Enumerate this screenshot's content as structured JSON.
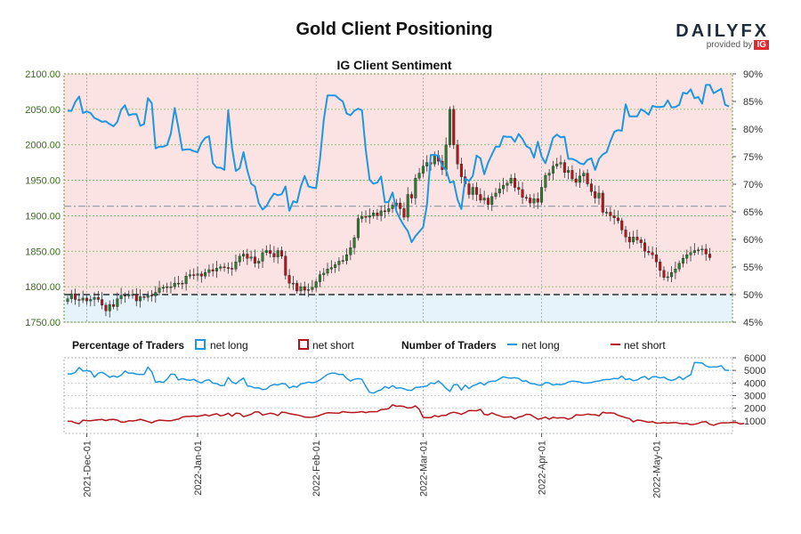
{
  "page": {
    "title": "Gold Client Positioning",
    "logo": {
      "brand_main": "DAILY",
      "brand_accent": "FX",
      "provided_by": "provided by",
      "ig": "IG"
    }
  },
  "colors": {
    "net_long": "#1e96e3",
    "net_short": "#b8141c",
    "candle_up": "#2e7d32",
    "candle_down": "#b8141c",
    "long_zone": "#e6f3fb",
    "short_zone": "#fbe3e3",
    "price_axis": "#3a6b1a",
    "grid": "#78b85a"
  },
  "chart_data": [
    {
      "type": "line",
      "title": "IG Client Sentiment",
      "left_axis": {
        "label": "",
        "ylim": [
          1750,
          2100
        ],
        "ticks": [
          "1750.00",
          "1800.00",
          "1850.00",
          "1900.00",
          "1950.00",
          "2000.00",
          "2050.00",
          "2100.00"
        ]
      },
      "right_axis": {
        "label": "",
        "ylim": [
          45,
          90
        ],
        "ticks": [
          "45%",
          "50%",
          "55%",
          "60%",
          "65%",
          "70%",
          "75%",
          "80%",
          "85%",
          "90%"
        ]
      },
      "reference_levels": {
        "sentiment_50_pct": 50,
        "price_dashed": 1913.5
      },
      "x_ticks": [
        "2021-Dec-01",
        "2022-Jan-01",
        "2022-Feb-01",
        "2022-Mar-01",
        "2022-Apr-01",
        "2022-May-01"
      ],
      "candles_close": [
        1783,
        1790,
        1782,
        1781,
        1784,
        1780,
        1782,
        1785,
        1782,
        1774,
        1766,
        1775,
        1772,
        1783,
        1788,
        1787,
        1789,
        1789,
        1780,
        1786,
        1785,
        1788,
        1787,
        1792,
        1798,
        1799,
        1800,
        1800,
        1805,
        1805,
        1804,
        1815,
        1817,
        1816,
        1818,
        1815,
        1820,
        1824,
        1822,
        1826,
        1828,
        1827,
        1826,
        1825,
        1835,
        1843,
        1846,
        1840,
        1842,
        1833,
        1836,
        1848,
        1851,
        1847,
        1842,
        1851,
        1843,
        1816,
        1805,
        1805,
        1794,
        1800,
        1795,
        1796,
        1799,
        1807,
        1817,
        1819,
        1825,
        1827,
        1831,
        1836,
        1837,
        1845,
        1855,
        1869,
        1896,
        1899,
        1898,
        1900,
        1904,
        1900,
        1907,
        1906,
        1910,
        1915,
        1918,
        1910,
        1898,
        1930,
        1925,
        1953,
        1960,
        1970,
        1975,
        1973,
        1985,
        1977,
        1965,
        2000,
        2050,
        2000,
        1973,
        1955,
        1945,
        1930,
        1940,
        1930,
        1922,
        1925,
        1916,
        1927,
        1932,
        1938,
        1943,
        1946,
        1953,
        1940,
        1937,
        1926,
        1925,
        1918,
        1924,
        1919,
        1940,
        1957,
        1960,
        1970,
        1973,
        1975,
        1961,
        1964,
        1952,
        1947,
        1956,
        1960,
        1945,
        1934,
        1925,
        1932,
        1905,
        1905,
        1900,
        1897,
        1893,
        1880,
        1870,
        1863,
        1870,
        1866,
        1862,
        1850,
        1848,
        1845,
        1835,
        1823,
        1813,
        1814,
        1820,
        1825,
        1833,
        1840,
        1845,
        1848,
        1851,
        1852,
        1853,
        1846,
        1841
      ],
      "series": [
        {
          "name": "net long",
          "axis": "right",
          "values": [
            83.3,
            83.3,
            84.9,
            85.9,
            82.9,
            83.2,
            82.9,
            82.0,
            81.7,
            81.3,
            81.4,
            80.9,
            80.5,
            81.3,
            83.5,
            84.3,
            82.5,
            82.7,
            82.7,
            80.6,
            80.9,
            85.6,
            84.7,
            76.5,
            76.8,
            76.8,
            77.1,
            79.2,
            83.8,
            80.2,
            76.2,
            76.3,
            76.3,
            76.0,
            75.8,
            77.5,
            78.4,
            78.7,
            73.8,
            73.0,
            73.0,
            72.6,
            83.4,
            76.6,
            72.4,
            72.9,
            75.8,
            72.5,
            70.1,
            69.6,
            66.6,
            65.4,
            66.0,
            67.3,
            68.3,
            68.0,
            68.2,
            69.6,
            65.2,
            66.9,
            66.7,
            69.6,
            71.5,
            69.6,
            69.4,
            69.3,
            74.5,
            81.7,
            86.1,
            86.1,
            86.1,
            85.5,
            85.0,
            82.8,
            82.5,
            83.3,
            83.7,
            83.4,
            76.2,
            70.8,
            70.1,
            70.3,
            71.4,
            66.7,
            66.8,
            68.5,
            65.1,
            63.7,
            62.5,
            61.5,
            59.5,
            60.6,
            61.4,
            62.2,
            66.2,
            75.3,
            75.3,
            75.2,
            73.3,
            72.6,
            70.3,
            70.5,
            67.2,
            65.5,
            71.0,
            70.6,
            71.5,
            75.2,
            74.7,
            71.8,
            73.9,
            75.4,
            76.8,
            76.8,
            78.7,
            78.6,
            78.6,
            77.7,
            79.1,
            78.2,
            76.9,
            76.5,
            74.8,
            77.7,
            75.0,
            73.8,
            76.0,
            78.4,
            79.0,
            78.5,
            78.6,
            74.6,
            74.6,
            74.3,
            73.8,
            73.6,
            74.4,
            74.7,
            72.6,
            74.6,
            75.4,
            75.8,
            77.8,
            79.5,
            79.8,
            79.7,
            84.5,
            82.3,
            82.3,
            82.3,
            83.6,
            83.2,
            82.6,
            84.2,
            84.0,
            84.0,
            84.1,
            85.2,
            83.9,
            84.0,
            84.4,
            86.6,
            86.4,
            87.2,
            85.6,
            85.8,
            84.6,
            88.0,
            88.0,
            86.5,
            86.9,
            87.3,
            84.4,
            84.1
          ]
        },
        {
          "name": "net short",
          "axis": "right",
          "values": [
            16.7,
            16.7,
            15.1,
            14.1,
            17.1,
            16.8,
            17.1,
            18.0,
            18.3,
            18.7,
            18.6,
            19.1,
            19.5,
            18.7,
            16.5,
            15.7,
            17.5,
            17.3,
            17.3,
            19.4,
            19.1,
            14.4,
            15.3,
            23.5,
            23.2,
            23.2,
            22.9,
            20.8,
            16.2,
            19.8,
            23.8,
            23.7,
            23.7,
            24.0,
            24.2,
            22.5,
            21.6,
            21.3,
            26.2,
            27.0,
            27.0,
            27.4,
            16.6,
            23.4,
            27.6,
            27.1,
            24.2,
            27.5,
            29.9,
            30.4,
            33.4,
            34.6,
            34.0,
            32.7,
            31.7,
            32.0,
            31.8,
            30.4,
            34.8,
            33.1,
            33.3,
            30.4,
            28.5,
            30.4,
            30.6,
            30.7,
            25.5,
            18.3,
            13.9,
            13.9,
            13.9,
            14.5,
            15.0,
            17.2,
            17.5,
            16.7,
            16.3,
            16.6,
            23.8,
            29.2,
            29.9,
            29.7,
            28.6,
            33.3,
            33.2,
            31.5,
            34.9,
            36.3,
            37.5,
            38.5,
            40.5,
            39.4,
            38.6,
            37.8,
            33.8,
            24.7,
            24.7,
            24.8,
            26.7,
            27.4,
            29.7,
            29.5,
            32.8,
            34.5,
            29.0,
            29.4,
            28.5,
            24.8,
            25.3,
            28.2,
            26.1,
            24.6,
            23.2,
            23.2,
            21.3,
            21.4,
            21.4,
            22.3,
            20.9,
            21.8,
            23.1,
            23.5,
            25.2,
            22.3,
            25.0,
            26.2,
            24.0,
            21.6,
            21.0,
            21.5,
            21.4,
            25.4,
            25.4,
            25.7,
            26.2,
            26.4,
            25.6,
            25.3,
            27.4,
            25.4,
            24.6,
            24.2,
            22.2,
            20.5,
            20.2,
            20.3,
            15.5,
            17.7,
            17.7,
            17.7,
            16.4,
            16.8,
            17.4,
            15.8,
            16.0,
            16.0,
            15.9,
            14.8,
            16.1,
            16.0,
            15.6,
            13.4,
            13.6,
            12.8,
            14.4,
            14.2,
            15.4,
            12.0,
            12.0,
            13.5,
            13.1,
            12.7,
            15.6,
            15.9
          ]
        }
      ]
    },
    {
      "type": "line",
      "title": "Number of Traders",
      "ylim": [
        0,
        6000
      ],
      "y_ticks": [
        "1000",
        "2000",
        "3000",
        "4000",
        "5000",
        "6000"
      ],
      "x_ticks": [
        "2021-Dec-01",
        "2022-Jan-01",
        "2022-Feb-01",
        "2022-Mar-01",
        "2022-Apr-01",
        "2022-May-01"
      ],
      "series": [
        {
          "name": "net long",
          "values": [
            4720,
            4720,
            4840,
            5230,
            4950,
            4980,
            4920,
            4460,
            4780,
            4850,
            4670,
            4450,
            4560,
            4460,
            4620,
            4950,
            4770,
            4790,
            4700,
            4680,
            4690,
            5260,
            4900,
            4050,
            4120,
            4040,
            4290,
            4700,
            4690,
            4240,
            4350,
            4260,
            4210,
            4290,
            4110,
            4010,
            4200,
            4250,
            3990,
            3950,
            3800,
            3810,
            4440,
            4080,
            3940,
            4190,
            4400,
            3770,
            3720,
            3610,
            3620,
            3470,
            3520,
            3770,
            3890,
            3840,
            3960,
            3920,
            3600,
            3750,
            3670,
            3930,
            3980,
            4070,
            4020,
            4080,
            4240,
            4470,
            4680,
            4780,
            4780,
            4670,
            4690,
            4370,
            4160,
            4290,
            4350,
            4290,
            3730,
            3260,
            3200,
            3350,
            3460,
            3720,
            3580,
            3800,
            3590,
            3620,
            3540,
            3430,
            3420,
            3640,
            3670,
            3710,
            3760,
            4010,
            3940,
            4170,
            3900,
            3570,
            3330,
            3860,
            3860,
            3440,
            3830,
            3550,
            3780,
            3890,
            4040,
            3840,
            4070,
            4140,
            4160,
            4330,
            4500,
            4410,
            4380,
            4420,
            4360,
            4140,
            4170,
            3960,
            3940,
            3850,
            3820,
            4030,
            4000,
            3830,
            3910,
            3860,
            3930,
            4070,
            4150,
            4120,
            4080,
            3990,
            4000,
            4030,
            4120,
            4160,
            4240,
            4280,
            4290,
            4360,
            4340,
            4550,
            4260,
            4340,
            4180,
            4240,
            4420,
            4520,
            4280,
            4500,
            4490,
            4400,
            4460,
            4280,
            4190,
            4300,
            4510,
            4270,
            4500,
            4650,
            5630,
            5610,
            5580,
            5350,
            5250,
            5280,
            5290,
            5370,
            5020,
            5000
          ]
        },
        {
          "name": "net short",
          "values": [
            960,
            960,
            840,
            770,
            1050,
            1020,
            1010,
            1050,
            1090,
            1110,
            1020,
            1100,
            1110,
            1060,
            900,
            910,
            1000,
            990,
            1030,
            1120,
            1030,
            940,
            840,
            980,
            1060,
            1030,
            1000,
            1000,
            1080,
            1140,
            1290,
            1350,
            1350,
            1380,
            1350,
            1410,
            1480,
            1390,
            1490,
            1560,
            1390,
            1460,
            1600,
            1370,
            1600,
            1580,
            1330,
            1420,
            1520,
            1700,
            1700,
            1460,
            1530,
            1600,
            1550,
            1420,
            1690,
            1660,
            1570,
            1520,
            1470,
            1400,
            1300,
            1280,
            1290,
            1340,
            1440,
            1560,
            1640,
            1630,
            1620,
            1610,
            1730,
            1690,
            1660,
            1660,
            1690,
            1730,
            1650,
            1720,
            1720,
            1730,
            1890,
            1910,
            1970,
            2270,
            2150,
            2180,
            2130,
            2020,
            2040,
            2180,
            1910,
            1270,
            1250,
            1250,
            1410,
            1330,
            1430,
            1430,
            1610,
            1680,
            1620,
            1510,
            1650,
            1820,
            1810,
            1800,
            1910,
            1510,
            1470,
            1630,
            1500,
            1400,
            1290,
            1300,
            1330,
            1150,
            1300,
            1370,
            1520,
            1500,
            1310,
            1130,
            1190,
            1290,
            1140,
            1280,
            1220,
            1240,
            1240,
            1120,
            1230,
            1480,
            1450,
            1470,
            1530,
            1490,
            1480,
            1390,
            1680,
            1620,
            1630,
            1600,
            1430,
            1350,
            1250,
            1180,
            910,
            1060,
            1030,
            950,
            880,
            930,
            810,
            820,
            860,
            820,
            850,
            870,
            800,
            770,
            790,
            700,
            730,
            800,
            910,
            940,
            730,
            650,
            760,
            840,
            840,
            850,
            880,
            870,
            750,
            790
          ]
        }
      ]
    }
  ],
  "legend": {
    "percentage_label": "Percentage of Traders",
    "number_label": "Number of Traders",
    "net_long": "net long",
    "net_short": "net short"
  }
}
